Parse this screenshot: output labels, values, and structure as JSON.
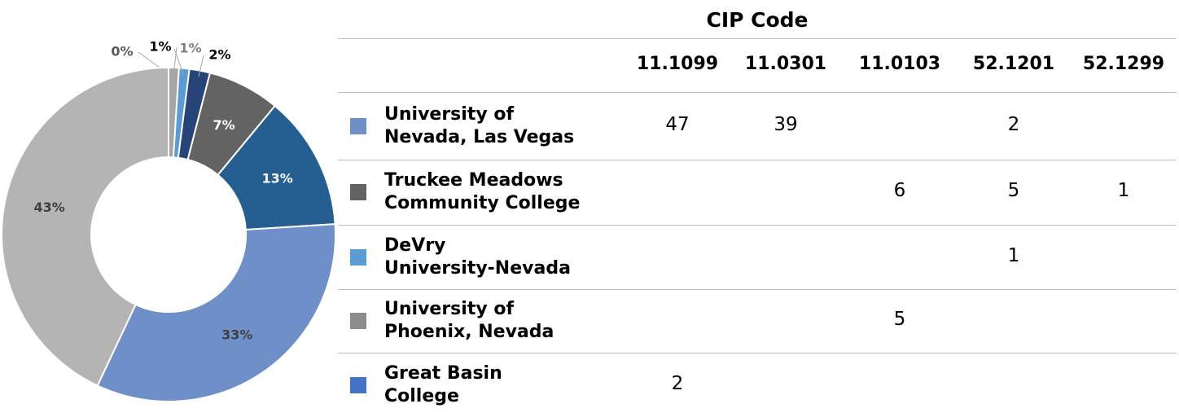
{
  "chart_data": {
    "type": "donut",
    "values": [
      0,
      1,
      1,
      2,
      7,
      13,
      33,
      43
    ],
    "value_labels": [
      "0%",
      "1%",
      "1%",
      "2%",
      "7%",
      "13%",
      "33%",
      "43%"
    ],
    "colors": [
      "#d9d9d9",
      "#a5a5a5",
      "#5b9bd5",
      "#264478",
      "#636363",
      "#255e91",
      "#6f8fc9",
      "#b4b4b4"
    ],
    "label_colors": [
      "#595959",
      "#000000",
      "#7f7f7f",
      "#000000",
      "#ffffff",
      "#ffffff",
      "#404040",
      "#404040"
    ]
  },
  "table": {
    "title": "CIP Code",
    "columns": [
      "11.1099",
      "11.0301",
      "11.0103",
      "52.1201",
      "52.1299"
    ],
    "rows": [
      {
        "name": [
          "University of",
          "Nevada, Las Vegas"
        ],
        "color": "#6f8fc9",
        "cells": [
          47,
          39,
          null,
          2,
          null
        ]
      },
      {
        "name": [
          "Truckee Meadows",
          "Community College"
        ],
        "color": "#636363",
        "cells": [
          null,
          null,
          6,
          5,
          1
        ]
      },
      {
        "name": [
          "DeVry",
          "University-Nevada"
        ],
        "color": "#5b9bd5",
        "cells": [
          null,
          null,
          null,
          1,
          null
        ]
      },
      {
        "name": [
          "University of",
          "Phoenix, Nevada"
        ],
        "color": "#8c8c8c",
        "cells": [
          null,
          null,
          5,
          null,
          null
        ]
      },
      {
        "name": [
          "Great Basin",
          "College"
        ],
        "color": "#4472c4",
        "cells": [
          2,
          null,
          null,
          null,
          null
        ]
      }
    ]
  }
}
